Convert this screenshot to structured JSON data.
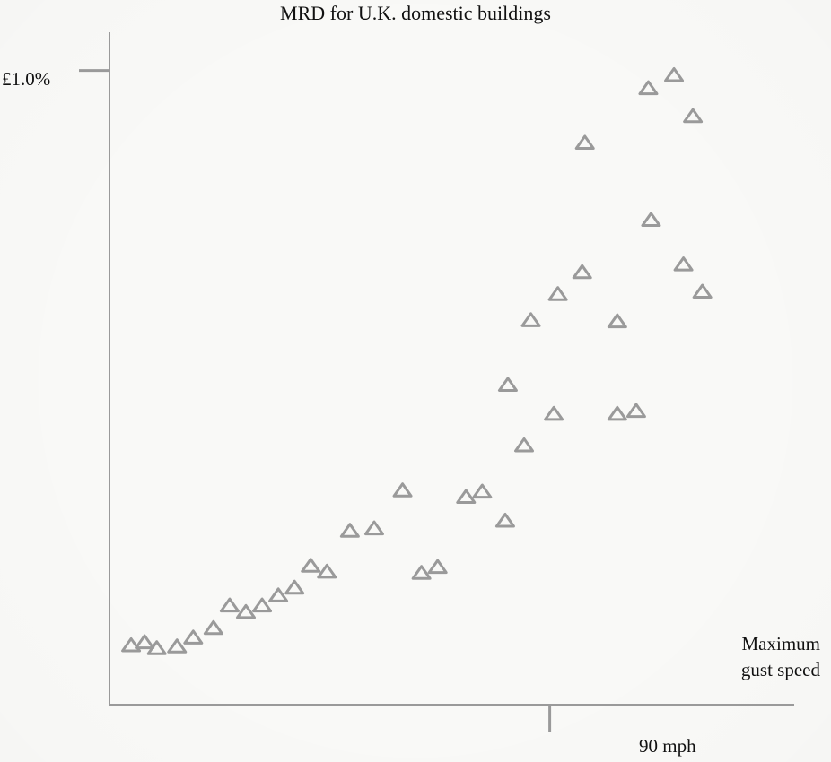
{
  "chart_data": {
    "type": "scatter",
    "title": "MRD for U.K. domestic buildings",
    "xlabel": "Maximum gust speed",
    "ylabel": "",
    "xtick_label": "90 mph",
    "ytick_label": "£1.0%",
    "xtick_value": 90,
    "ytick_value": 1.0,
    "xlim": [
      57.4,
      108.1
    ],
    "ylim": [
      -0.069,
      1.01
    ],
    "marker": "triangle-outline",
    "marker_color": "#9a9a9a",
    "axis_color": "#9a9a9a",
    "grid": false,
    "points": [
      {
        "x": 59.0,
        "y": 0.03
      },
      {
        "x": 60.0,
        "y": 0.035
      },
      {
        "x": 60.9,
        "y": 0.025
      },
      {
        "x": 62.4,
        "y": 0.028
      },
      {
        "x": 63.6,
        "y": 0.043
      },
      {
        "x": 65.1,
        "y": 0.059
      },
      {
        "x": 66.3,
        "y": 0.097
      },
      {
        "x": 67.5,
        "y": 0.086
      },
      {
        "x": 68.7,
        "y": 0.097
      },
      {
        "x": 69.9,
        "y": 0.114
      },
      {
        "x": 71.1,
        "y": 0.127
      },
      {
        "x": 72.3,
        "y": 0.164
      },
      {
        "x": 73.5,
        "y": 0.154
      },
      {
        "x": 75.2,
        "y": 0.223
      },
      {
        "x": 77.0,
        "y": 0.227
      },
      {
        "x": 79.1,
        "y": 0.291
      },
      {
        "x": 80.5,
        "y": 0.152
      },
      {
        "x": 81.7,
        "y": 0.162
      },
      {
        "x": 83.8,
        "y": 0.28
      },
      {
        "x": 85.0,
        "y": 0.289
      },
      {
        "x": 86.7,
        "y": 0.24
      },
      {
        "x": 86.9,
        "y": 0.469
      },
      {
        "x": 88.1,
        "y": 0.367
      },
      {
        "x": 88.6,
        "y": 0.578
      },
      {
        "x": 90.3,
        "y": 0.42
      },
      {
        "x": 90.6,
        "y": 0.622
      },
      {
        "x": 92.4,
        "y": 0.659
      },
      {
        "x": 92.6,
        "y": 0.877
      },
      {
        "x": 95.0,
        "y": 0.576
      },
      {
        "x": 95.0,
        "y": 0.42
      },
      {
        "x": 96.4,
        "y": 0.425
      },
      {
        "x": 97.3,
        "y": 0.969
      },
      {
        "x": 97.5,
        "y": 0.747
      },
      {
        "x": 99.2,
        "y": 0.991
      },
      {
        "x": 99.9,
        "y": 0.672
      },
      {
        "x": 100.6,
        "y": 0.922
      },
      {
        "x": 101.3,
        "y": 0.626
      }
    ]
  }
}
